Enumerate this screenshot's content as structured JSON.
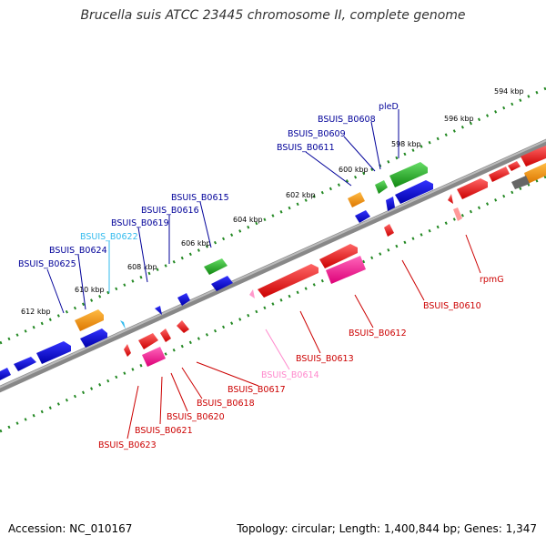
{
  "title": "Brucella suis ATCC 23445 chromosome II, complete genome",
  "footer": {
    "accession": "Accession: NC_010167",
    "summary": "Topology: circular; Length: 1,400,844 bp; Genes: 1,347"
  },
  "colors": {
    "red": "#ff0000",
    "blue": "#0000dd",
    "green": "#22bb22",
    "orange": "#ff9900",
    "magenta": "#ff1493",
    "pink": "#ff88cc",
    "lightblue": "#33bbee",
    "gray": "#666666",
    "label_blue": "#000099",
    "label_red": "#cc0000"
  },
  "kbp_ticks": [
    "594 kbp",
    "596 kbp",
    "598 kbp",
    "600 kbp",
    "602 kbp",
    "604 kbp",
    "606 kbp",
    "608 kbp",
    "610 kbp",
    "612 kbp"
  ],
  "gene_labels": {
    "pleD": "pleD",
    "b0608": "BSUIS_B0608",
    "b0609": "BSUIS_B0609",
    "b0611": "BSUIS_B0611",
    "b0615": "BSUIS_B0615",
    "b0616": "BSUIS_B0616",
    "b0619": "BSUIS_B0619",
    "b0622": "BSUIS_B0622",
    "b0624": "BSUIS_B0624",
    "b0625": "BSUIS_B0625",
    "rpmG": "rpmG",
    "b0610": "BSUIS_B0610",
    "b0612": "BSUIS_B0612",
    "b0613": "BSUIS_B0613",
    "b0614": "BSUIS_B0614",
    "b0617": "BSUIS_B0617",
    "b0618": "BSUIS_B0618",
    "b0620": "BSUIS_B0620",
    "b0621": "BSUIS_B0621",
    "b0623": "BSUIS_B0623"
  }
}
